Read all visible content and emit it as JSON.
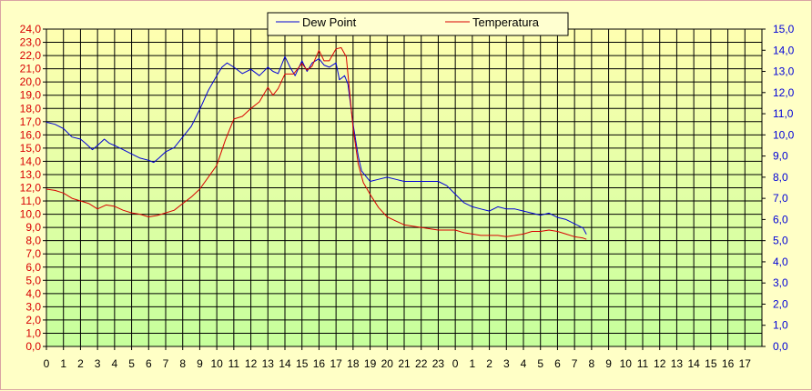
{
  "chart_data": {
    "type": "line",
    "title": "",
    "xlabel": "",
    "ylabel": "",
    "grid": true,
    "legend_position": "top",
    "y_left": {
      "min": 0,
      "max": 24,
      "step": 1,
      "color": "#d80000",
      "ticks": [
        "0,0",
        "1,0",
        "2,0",
        "3,0",
        "4,0",
        "5,0",
        "6,0",
        "7,0",
        "8,0",
        "9,0",
        "10,0",
        "11,0",
        "12,0",
        "13,0",
        "14,0",
        "15,0",
        "16,0",
        "17,0",
        "18,0",
        "19,0",
        "20,0",
        "21,0",
        "22,0",
        "23,0",
        "24,0"
      ]
    },
    "y_right": {
      "min": 0,
      "max": 15,
      "step": 1,
      "color": "#0000d8",
      "ticks": [
        "0,0",
        "1,0",
        "2,0",
        "3,0",
        "4,0",
        "5,0",
        "6,0",
        "7,0",
        "8,0",
        "9,0",
        "10,0",
        "11,0",
        "12,0",
        "13,0",
        "14,0",
        "15,0"
      ]
    },
    "x_ticks": [
      "0",
      "1",
      "2",
      "3",
      "4",
      "5",
      "6",
      "7",
      "8",
      "9",
      "10",
      "11",
      "12",
      "13",
      "14",
      "15",
      "16",
      "17",
      "18",
      "19",
      "20",
      "21",
      "22",
      "23",
      "0",
      "1",
      "2",
      "3",
      "4",
      "5",
      "6",
      "7",
      "8",
      "9",
      "10",
      "11",
      "12",
      "13",
      "14",
      "15",
      "16",
      "17"
    ],
    "series": [
      {
        "name": "Dew Point",
        "color": "#0000d8",
        "axis": "right",
        "points": [
          [
            0,
            10.6
          ],
          [
            0.5,
            10.5
          ],
          [
            1,
            10.3
          ],
          [
            1.5,
            9.9
          ],
          [
            2,
            9.8
          ],
          [
            2.3,
            9.6
          ],
          [
            2.7,
            9.3
          ],
          [
            3,
            9.5
          ],
          [
            3.4,
            9.8
          ],
          [
            3.7,
            9.6
          ],
          [
            4,
            9.5
          ],
          [
            4.5,
            9.3
          ],
          [
            5,
            9.1
          ],
          [
            5.5,
            8.9
          ],
          [
            6,
            8.8
          ],
          [
            6.3,
            8.7
          ],
          [
            6.6,
            8.9
          ],
          [
            7,
            9.2
          ],
          [
            7.5,
            9.4
          ],
          [
            8,
            9.9
          ],
          [
            8.5,
            10.4
          ],
          [
            9,
            11.2
          ],
          [
            9.5,
            12.1
          ],
          [
            10,
            12.8
          ],
          [
            10.3,
            13.2
          ],
          [
            10.6,
            13.4
          ],
          [
            11,
            13.2
          ],
          [
            11.5,
            12.9
          ],
          [
            12,
            13.1
          ],
          [
            12.5,
            12.8
          ],
          [
            13,
            13.2
          ],
          [
            13.3,
            13.0
          ],
          [
            13.6,
            12.9
          ],
          [
            14,
            13.7
          ],
          [
            14.3,
            13.2
          ],
          [
            14.6,
            12.8
          ],
          [
            15,
            13.5
          ],
          [
            15.3,
            13.0
          ],
          [
            15.6,
            13.4
          ],
          [
            16,
            13.6
          ],
          [
            16.3,
            13.3
          ],
          [
            16.6,
            13.2
          ],
          [
            17,
            13.4
          ],
          [
            17.2,
            12.6
          ],
          [
            17.5,
            12.8
          ],
          [
            17.7,
            12.4
          ],
          [
            18,
            10.5
          ],
          [
            18.3,
            9.0
          ],
          [
            18.5,
            8.3
          ],
          [
            18.8,
            8.0
          ],
          [
            19,
            7.8
          ],
          [
            19.5,
            7.9
          ],
          [
            20,
            8.0
          ],
          [
            20.5,
            7.9
          ],
          [
            21,
            7.8
          ],
          [
            21.5,
            7.8
          ],
          [
            22,
            7.8
          ],
          [
            22.5,
            7.8
          ],
          [
            23,
            7.8
          ],
          [
            23.5,
            7.6
          ],
          [
            24,
            7.2
          ],
          [
            24.5,
            6.8
          ],
          [
            25,
            6.6
          ],
          [
            25.5,
            6.5
          ],
          [
            26,
            6.4
          ],
          [
            26.5,
            6.6
          ],
          [
            27,
            6.5
          ],
          [
            27.5,
            6.5
          ],
          [
            28,
            6.4
          ],
          [
            28.5,
            6.3
          ],
          [
            29,
            6.2
          ],
          [
            29.5,
            6.3
          ],
          [
            30,
            6.1
          ],
          [
            30.5,
            6.0
          ],
          [
            31,
            5.8
          ],
          [
            31.5,
            5.6
          ],
          [
            31.7,
            5.3
          ]
        ]
      },
      {
        "name": "Temperatura",
        "color": "#d80000",
        "axis": "left",
        "points": [
          [
            0,
            11.9
          ],
          [
            0.5,
            11.8
          ],
          [
            1,
            11.6
          ],
          [
            1.5,
            11.2
          ],
          [
            2,
            11.0
          ],
          [
            2.5,
            10.8
          ],
          [
            3,
            10.4
          ],
          [
            3.5,
            10.7
          ],
          [
            4,
            10.6
          ],
          [
            4.5,
            10.3
          ],
          [
            5,
            10.1
          ],
          [
            5.5,
            10.0
          ],
          [
            6,
            9.8
          ],
          [
            6.5,
            9.9
          ],
          [
            7,
            10.1
          ],
          [
            7.5,
            10.3
          ],
          [
            8,
            10.8
          ],
          [
            8.5,
            11.3
          ],
          [
            9,
            11.9
          ],
          [
            9.5,
            12.8
          ],
          [
            10,
            13.7
          ],
          [
            10.5,
            15.6
          ],
          [
            11,
            17.2
          ],
          [
            11.5,
            17.4
          ],
          [
            12,
            18.0
          ],
          [
            12.5,
            18.5
          ],
          [
            13,
            19.6
          ],
          [
            13.3,
            19.0
          ],
          [
            13.6,
            19.5
          ],
          [
            14,
            20.6
          ],
          [
            14.5,
            20.6
          ],
          [
            15,
            21.4
          ],
          [
            15.3,
            20.9
          ],
          [
            15.6,
            21.2
          ],
          [
            16,
            22.4
          ],
          [
            16.3,
            21.6
          ],
          [
            16.6,
            21.6
          ],
          [
            17,
            22.5
          ],
          [
            17.3,
            22.6
          ],
          [
            17.6,
            21.9
          ],
          [
            18,
            16.5
          ],
          [
            18.3,
            13.8
          ],
          [
            18.6,
            12.4
          ],
          [
            19,
            11.5
          ],
          [
            19.5,
            10.5
          ],
          [
            20,
            9.8
          ],
          [
            20.5,
            9.5
          ],
          [
            21,
            9.2
          ],
          [
            21.5,
            9.1
          ],
          [
            22,
            9.0
          ],
          [
            22.5,
            8.9
          ],
          [
            23,
            8.8
          ],
          [
            23.5,
            8.8
          ],
          [
            24,
            8.8
          ],
          [
            24.5,
            8.6
          ],
          [
            25,
            8.5
          ],
          [
            25.5,
            8.4
          ],
          [
            26,
            8.4
          ],
          [
            26.5,
            8.4
          ],
          [
            27,
            8.3
          ],
          [
            27.5,
            8.4
          ],
          [
            28,
            8.5
          ],
          [
            28.5,
            8.7
          ],
          [
            29,
            8.7
          ],
          [
            29.5,
            8.8
          ],
          [
            30,
            8.7
          ],
          [
            30.5,
            8.5
          ],
          [
            31,
            8.3
          ],
          [
            31.5,
            8.2
          ],
          [
            31.7,
            8.1
          ]
        ]
      }
    ]
  },
  "legend": {
    "items": [
      {
        "label": "Dew Point",
        "color": "#0000d8"
      },
      {
        "label": "Temperatura",
        "color": "#d80000"
      }
    ]
  }
}
